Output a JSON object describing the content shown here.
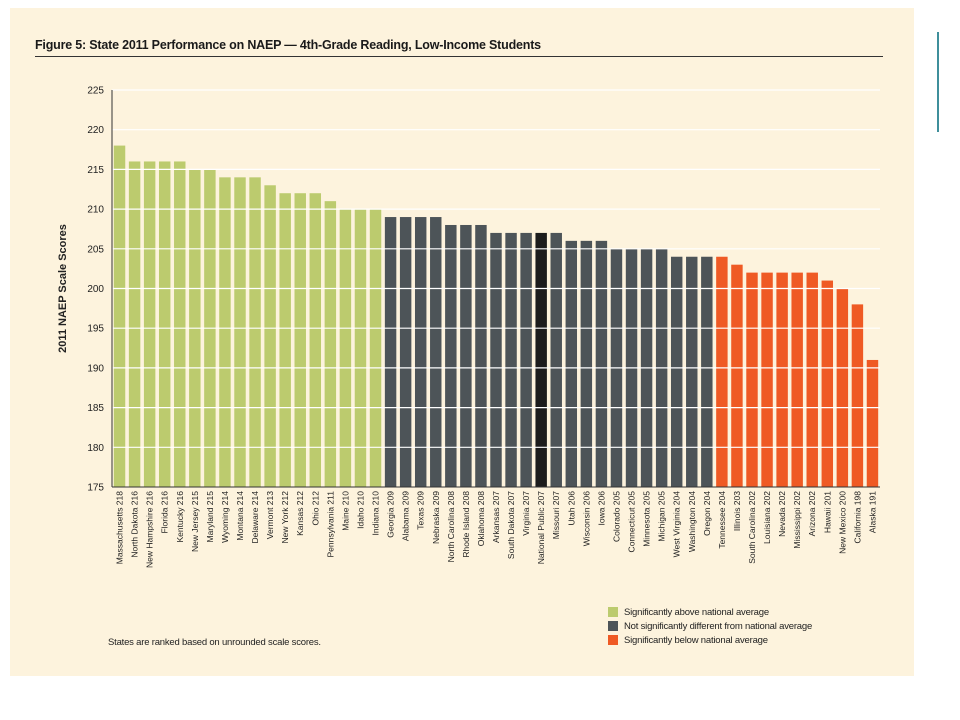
{
  "figure": {
    "title": "Figure 5: State 2011 Performance on NAEP — 4th-Grade Reading, Low-Income Students",
    "footnote": "States are ranked based on unrounded scale scores."
  },
  "legend": [
    {
      "label": "Significantly above national average",
      "color": "#bccb6e"
    },
    {
      "label": "Not significantly different from national average",
      "color": "#4d5458"
    },
    {
      "label": "Significantly below national average",
      "color": "#ef5a24"
    }
  ],
  "colors": {
    "above": "#bccb6e",
    "not_different": "#4d5458",
    "below": "#ef5a24",
    "national": "#1c1c1c",
    "grid": "#ffffff",
    "background": "#fdf3dd"
  },
  "chart_data": {
    "type": "bar",
    "title": "Figure 5: State 2011 Performance on NAEP — 4th-Grade Reading, Low-Income Students",
    "xlabel": "",
    "ylabel": "2011 NAEP Scale Scores",
    "ylim": [
      175,
      225
    ],
    "yticks": [
      175,
      180,
      185,
      190,
      195,
      200,
      205,
      210,
      215,
      220,
      225
    ],
    "grid": true,
    "legend_position": "bottom-right",
    "categories": [
      "Massachusetts",
      "North Dakota",
      "New Hampshire",
      "Florida",
      "Kentucky",
      "New Jersey",
      "Maryland",
      "Wyoming",
      "Montana",
      "Delaware",
      "Vermont",
      "New York",
      "Kansas",
      "Ohio",
      "Pennsylvania",
      "Maine",
      "Idaho",
      "Indiana",
      "Georgia",
      "Alabama",
      "Texas",
      "Nebraska",
      "North Carolina",
      "Rhode Island",
      "Oklahoma",
      "Arkansas",
      "South Dakota",
      "Virginia",
      "National Public",
      "Missouri",
      "Utah",
      "Wisconsin",
      "Iowa",
      "Colorado",
      "Connecticut",
      "Minnesota",
      "Michigan",
      "West Virginia",
      "Washington",
      "Oregon",
      "Tennessee",
      "Illinois",
      "South Carolina",
      "Louisiana",
      "Nevada",
      "Mississippi",
      "Arizona",
      "Hawaii",
      "New Mexico",
      "California",
      "Alaska"
    ],
    "values": [
      218,
      216,
      216,
      216,
      216,
      215,
      215,
      214,
      214,
      214,
      213,
      212,
      212,
      212,
      211,
      210,
      210,
      210,
      209,
      209,
      209,
      209,
      208,
      208,
      208,
      207,
      207,
      207,
      207,
      207,
      206,
      206,
      206,
      205,
      205,
      205,
      205,
      204,
      204,
      204,
      204,
      203,
      202,
      202,
      202,
      202,
      202,
      201,
      200,
      198,
      191
    ],
    "groups": [
      "above",
      "above",
      "above",
      "above",
      "above",
      "above",
      "above",
      "above",
      "above",
      "above",
      "above",
      "above",
      "above",
      "above",
      "above",
      "above",
      "above",
      "above",
      "not_different",
      "not_different",
      "not_different",
      "not_different",
      "not_different",
      "not_different",
      "not_different",
      "not_different",
      "not_different",
      "not_different",
      "national",
      "not_different",
      "not_different",
      "not_different",
      "not_different",
      "not_different",
      "not_different",
      "not_different",
      "not_different",
      "not_different",
      "not_different",
      "not_different",
      "below",
      "below",
      "below",
      "below",
      "below",
      "below",
      "below",
      "below",
      "below",
      "below",
      "below"
    ]
  }
}
